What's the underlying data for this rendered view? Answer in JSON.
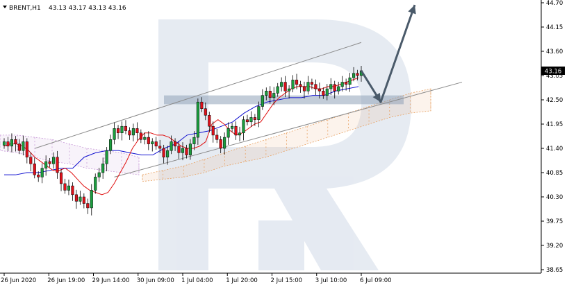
{
  "header": {
    "symbol": "BRENT,H1",
    "ohlc": "43.13 43.17 43.13 43.16"
  },
  "colors": {
    "bull_candle": "#1b9e3e",
    "bear_candle": "#e0101a",
    "tenkan": "#e01010",
    "kijun": "#1010d0",
    "cloud_bull": "#e8a060",
    "cloud_bear": "#c89ad8",
    "channel": "#8a8a8a",
    "arrow": "#4a5a6a",
    "zone": "#8fa3b8",
    "price_tag": "#000000"
  },
  "chart_data": {
    "type": "candlestick",
    "symbol": "BRENT",
    "timeframe": "H1",
    "y_ticks": [
      "44.70",
      "44.15",
      "43.60",
      "43.05",
      "42.50",
      "41.95",
      "41.40",
      "40.85",
      "40.30",
      "39.75",
      "39.20",
      "38.65"
    ],
    "ylim": [
      38.65,
      44.7
    ],
    "x_ticks": [
      "26 Jun 2020",
      "26 Jun 19:00",
      "29 Jun 14:00",
      "30 Jun 09:00",
      "1 Jul 04:00",
      "1 Jul 20:00",
      "2 Jul 15:00",
      "3 Jul 10:00",
      "6 Jul 09:00"
    ],
    "last_price": "43.16",
    "closes": [
      41.55,
      41.45,
      41.6,
      41.5,
      41.35,
      41.55,
      41.2,
      41.05,
      40.8,
      40.75,
      40.95,
      41.1,
      41.05,
      41.2,
      40.85,
      40.6,
      40.45,
      40.55,
      40.35,
      40.2,
      40.3,
      40.15,
      40.05,
      40.45,
      40.75,
      40.85,
      41.05,
      41.35,
      41.6,
      41.85,
      41.75,
      41.9,
      41.8,
      41.7,
      41.85,
      41.75,
      41.6,
      41.65,
      41.5,
      41.55,
      41.45,
      41.4,
      41.2,
      41.35,
      41.55,
      41.45,
      41.3,
      41.4,
      41.25,
      41.5,
      41.65,
      42.45,
      42.3,
      42.15,
      41.9,
      41.7,
      41.6,
      41.4,
      41.65,
      41.85,
      41.9,
      41.7,
      41.75,
      42.05,
      42.0,
      42.1,
      42.05,
      42.35,
      42.6,
      42.7,
      42.55,
      42.65,
      42.8,
      42.9,
      42.7,
      42.75,
      42.95,
      42.85,
      42.8,
      42.7,
      42.9,
      42.85,
      42.75,
      42.7,
      42.6,
      42.75,
      42.85,
      42.7,
      42.8,
      42.9,
      42.85,
      43.0,
      43.1,
      43.05,
      43.16
    ],
    "tenkan": [
      41.45,
      41.5,
      41.5,
      41.45,
      41.35,
      41.2,
      41.1,
      41.0,
      40.9,
      40.9,
      40.95,
      40.85,
      40.7,
      40.55,
      40.45,
      40.4,
      40.35,
      40.4,
      40.6,
      40.85,
      41.1,
      41.4,
      41.6,
      41.75,
      41.75,
      41.7,
      41.7,
      41.65,
      41.55,
      41.45,
      41.4,
      41.4,
      41.45,
      41.55,
      41.95,
      42.05,
      41.95,
      41.8,
      41.7,
      41.75,
      41.85,
      41.95,
      42.0,
      42.2,
      42.4,
      42.55,
      42.65,
      42.75,
      42.8,
      42.8,
      42.8,
      42.75,
      42.75,
      42.8,
      42.8,
      42.85,
      42.9,
      42.95,
      43.0
    ],
    "kijun": [
      40.8,
      40.8,
      40.85,
      40.85,
      40.9,
      40.95,
      40.95,
      41.2,
      41.3,
      41.35,
      41.35,
      41.3,
      41.25,
      41.25,
      41.4,
      41.5,
      41.7,
      41.75,
      41.8,
      41.9,
      42.0,
      42.2,
      42.35,
      42.45,
      42.5,
      42.55,
      42.55,
      42.6,
      42.6,
      42.7,
      42.75,
      42.8
    ],
    "cloud": {
      "bear_upper": [
        41.7,
        41.7,
        41.65,
        41.6,
        41.5,
        41.4,
        41.35,
        41.3,
        41.2
      ],
      "bear_lower": [
        41.35,
        41.3,
        41.2,
        41.1,
        41.05,
        40.95,
        40.9,
        40.85,
        40.8
      ],
      "bull_upper": [
        40.8,
        40.9,
        41.0,
        41.15,
        41.3,
        41.45,
        41.6,
        41.75,
        41.9,
        42.05,
        42.2,
        42.35,
        42.5,
        42.65,
        42.75
      ],
      "bull_lower": [
        40.65,
        40.7,
        40.75,
        40.85,
        41.0,
        41.1,
        41.2,
        41.35,
        41.5,
        41.65,
        41.8,
        41.95,
        42.1,
        42.2,
        42.25
      ]
    },
    "channel": {
      "upper": [
        {
          "x": "26 Jun 19:00",
          "y": 41.4
        },
        {
          "x": "6 Jul 09:00",
          "y": 43.8
        }
      ],
      "lower": [
        {
          "x": "29 Jun 14:00",
          "y": 40.75
        },
        {
          "x": "6 Jul 09:00",
          "y": 42.9
        }
      ]
    },
    "forecast": [
      43.16,
      42.45,
      44.65
    ],
    "resistance_zone": [
      42.4,
      42.6
    ]
  }
}
